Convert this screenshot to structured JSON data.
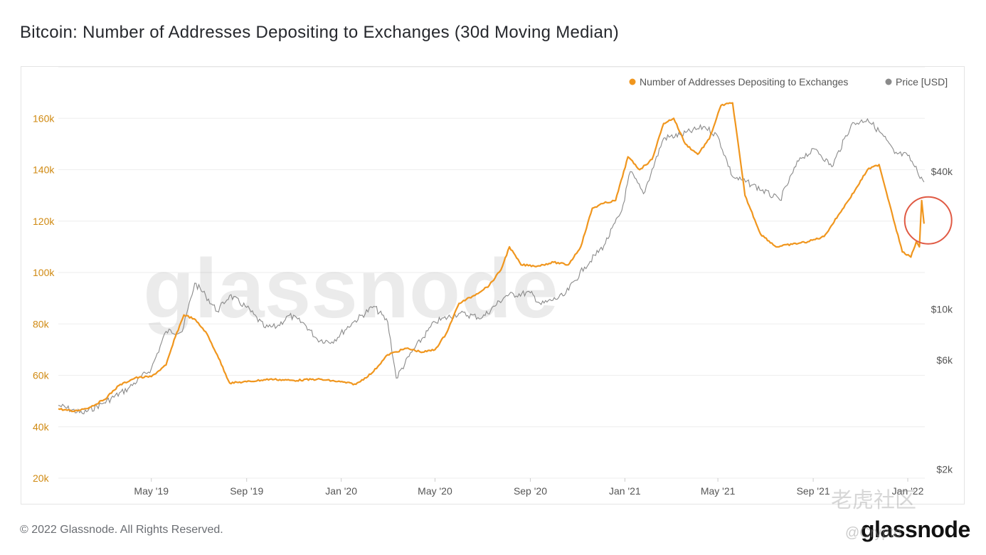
{
  "title": "Bitcoin: Number of Addresses Depositing to Exchanges (30d Moving Median)",
  "footer": {
    "copyright": "© 2022 Glassnode. All Rights Reserved.",
    "logo": "glassnode"
  },
  "watermarks": {
    "center": "glassnode",
    "community": "老虎社区",
    "handle": "@Crypto"
  },
  "colors": {
    "addresses": "#f0961e",
    "price": "#8a8a8a",
    "left_axis_text": "#d08a12",
    "right_axis_text": "#555555",
    "grid": "#eeeeee",
    "highlight_circle": "#e05a44"
  },
  "chart_data": {
    "type": "line",
    "x_axis": {
      "min": "2019-01-01",
      "max": "2022-01-23",
      "tick_labels": [
        "May '19",
        "Sep '19",
        "Jan '20",
        "May '20",
        "Sep '20",
        "Jan '21",
        "May '21",
        "Sep '21",
        "Jan '22"
      ],
      "tick_dates": [
        "2019-05-01",
        "2019-09-01",
        "2020-01-01",
        "2020-05-01",
        "2020-09-01",
        "2021-01-01",
        "2021-05-01",
        "2021-09-01",
        "2022-01-01"
      ]
    },
    "y_left": {
      "label": "",
      "min": 20000,
      "max": 180000,
      "ticks": [
        20000,
        40000,
        60000,
        80000,
        100000,
        120000,
        140000,
        160000
      ],
      "tick_labels": [
        "20k",
        "40k",
        "60k",
        "80k",
        "100k",
        "120k",
        "140k",
        "160k"
      ]
    },
    "y_right": {
      "label": "",
      "scale": "log",
      "ticks": [
        2000,
        6000,
        10000,
        40000
      ],
      "tick_labels": [
        "$2k",
        "$6k",
        "$10k",
        "$40k"
      ]
    },
    "grid": true,
    "legend_position": "top-right",
    "legend": [
      {
        "label": "Number of Addresses Depositing to Exchanges",
        "color": "#f0961e"
      },
      {
        "label": "Price [USD]",
        "color": "#8a8a8a"
      }
    ],
    "annotation": {
      "type": "circle",
      "date": "2022-01-20",
      "value": 120000
    },
    "series": [
      {
        "name": "Number of Addresses Depositing to Exchanges",
        "axis": "left",
        "points": [
          [
            "2019-01-01",
            47000
          ],
          [
            "2019-01-20",
            46000
          ],
          [
            "2019-02-10",
            47500
          ],
          [
            "2019-03-01",
            50500
          ],
          [
            "2019-03-20",
            56000
          ],
          [
            "2019-04-10",
            59000
          ],
          [
            "2019-05-01",
            59500
          ],
          [
            "2019-05-20",
            64000
          ],
          [
            "2019-06-01",
            75000
          ],
          [
            "2019-06-12",
            83500
          ],
          [
            "2019-06-25",
            82000
          ],
          [
            "2019-07-10",
            77000
          ],
          [
            "2019-07-25",
            68000
          ],
          [
            "2019-08-10",
            57000
          ],
          [
            "2019-09-01",
            57500
          ],
          [
            "2019-10-01",
            58500
          ],
          [
            "2019-11-01",
            58000
          ],
          [
            "2019-12-01",
            58500
          ],
          [
            "2019-12-31",
            57500
          ],
          [
            "2020-01-20",
            56500
          ],
          [
            "2020-02-10",
            61000
          ],
          [
            "2020-03-01",
            68000
          ],
          [
            "2020-03-25",
            70500
          ],
          [
            "2020-04-15",
            69000
          ],
          [
            "2020-05-01",
            70000
          ],
          [
            "2020-05-15",
            76000
          ],
          [
            "2020-06-01",
            88000
          ],
          [
            "2020-06-20",
            91000
          ],
          [
            "2020-07-10",
            95000
          ],
          [
            "2020-07-25",
            101000
          ],
          [
            "2020-08-05",
            110000
          ],
          [
            "2020-08-20",
            103000
          ],
          [
            "2020-09-10",
            102500
          ],
          [
            "2020-10-01",
            104000
          ],
          [
            "2020-10-20",
            103000
          ],
          [
            "2020-11-05",
            110000
          ],
          [
            "2020-11-20",
            125000
          ],
          [
            "2020-12-05",
            127000
          ],
          [
            "2020-12-20",
            128000
          ],
          [
            "2021-01-05",
            145000
          ],
          [
            "2021-01-20",
            140000
          ],
          [
            "2021-02-05",
            144000
          ],
          [
            "2021-02-20",
            158000
          ],
          [
            "2021-03-05",
            160000
          ],
          [
            "2021-03-20",
            150000
          ],
          [
            "2021-04-05",
            146000
          ],
          [
            "2021-04-20",
            152000
          ],
          [
            "2021-05-05",
            165000
          ],
          [
            "2021-05-20",
            166000
          ],
          [
            "2021-06-05",
            130000
          ],
          [
            "2021-06-25",
            115000
          ],
          [
            "2021-07-15",
            110000
          ],
          [
            "2021-08-05",
            111000
          ],
          [
            "2021-08-25",
            112000
          ],
          [
            "2021-09-15",
            114000
          ],
          [
            "2021-10-05",
            123000
          ],
          [
            "2021-10-25",
            132000
          ],
          [
            "2021-11-10",
            140000
          ],
          [
            "2021-11-25",
            142000
          ],
          [
            "2021-12-10",
            125000
          ],
          [
            "2021-12-25",
            108000
          ],
          [
            "2022-01-05",
            106000
          ],
          [
            "2022-01-12",
            112000
          ],
          [
            "2022-01-16",
            110000
          ],
          [
            "2022-01-19",
            128000
          ],
          [
            "2022-01-22",
            119000
          ]
        ]
      },
      {
        "name": "Price [USD]",
        "axis": "right",
        "points": [
          [
            "2019-01-01",
            3800
          ],
          [
            "2019-02-01",
            3500
          ],
          [
            "2019-03-01",
            3900
          ],
          [
            "2019-04-01",
            4500
          ],
          [
            "2019-05-01",
            5500
          ],
          [
            "2019-05-20",
            8000
          ],
          [
            "2019-06-10",
            8000
          ],
          [
            "2019-06-26",
            13000
          ],
          [
            "2019-07-10",
            11500
          ],
          [
            "2019-07-25",
            9800
          ],
          [
            "2019-08-10",
            11500
          ],
          [
            "2019-09-01",
            10200
          ],
          [
            "2019-09-25",
            8300
          ],
          [
            "2019-10-10",
            8400
          ],
          [
            "2019-10-26",
            9400
          ],
          [
            "2019-11-15",
            8600
          ],
          [
            "2019-12-01",
            7400
          ],
          [
            "2019-12-20",
            7200
          ],
          [
            "2020-01-15",
            8700
          ],
          [
            "2020-02-12",
            10300
          ],
          [
            "2020-03-01",
            8800
          ],
          [
            "2020-03-12",
            5000
          ],
          [
            "2020-04-01",
            6500
          ],
          [
            "2020-05-01",
            8800
          ],
          [
            "2020-06-01",
            9600
          ],
          [
            "2020-07-01",
            9200
          ],
          [
            "2020-08-01",
            11500
          ],
          [
            "2020-09-01",
            11800
          ],
          [
            "2020-09-15",
            10500
          ],
          [
            "2020-10-15",
            11500
          ],
          [
            "2020-11-10",
            15300
          ],
          [
            "2020-12-05",
            19000
          ],
          [
            "2020-12-28",
            27000
          ],
          [
            "2021-01-08",
            40000
          ],
          [
            "2021-01-25",
            32000
          ],
          [
            "2021-02-20",
            56000
          ],
          [
            "2021-03-15",
            58000
          ],
          [
            "2021-04-14",
            63000
          ],
          [
            "2021-05-01",
            57000
          ],
          [
            "2021-05-20",
            38000
          ],
          [
            "2021-06-15",
            35000
          ],
          [
            "2021-07-20",
            30000
          ],
          [
            "2021-08-15",
            46000
          ],
          [
            "2021-09-05",
            50000
          ],
          [
            "2021-09-25",
            42000
          ],
          [
            "2021-10-20",
            64000
          ],
          [
            "2021-11-10",
            68000
          ],
          [
            "2021-12-01",
            57000
          ],
          [
            "2021-12-15",
            48000
          ],
          [
            "2022-01-01",
            47000
          ],
          [
            "2022-01-10",
            42000
          ],
          [
            "2022-01-22",
            36000
          ]
        ]
      }
    ]
  }
}
